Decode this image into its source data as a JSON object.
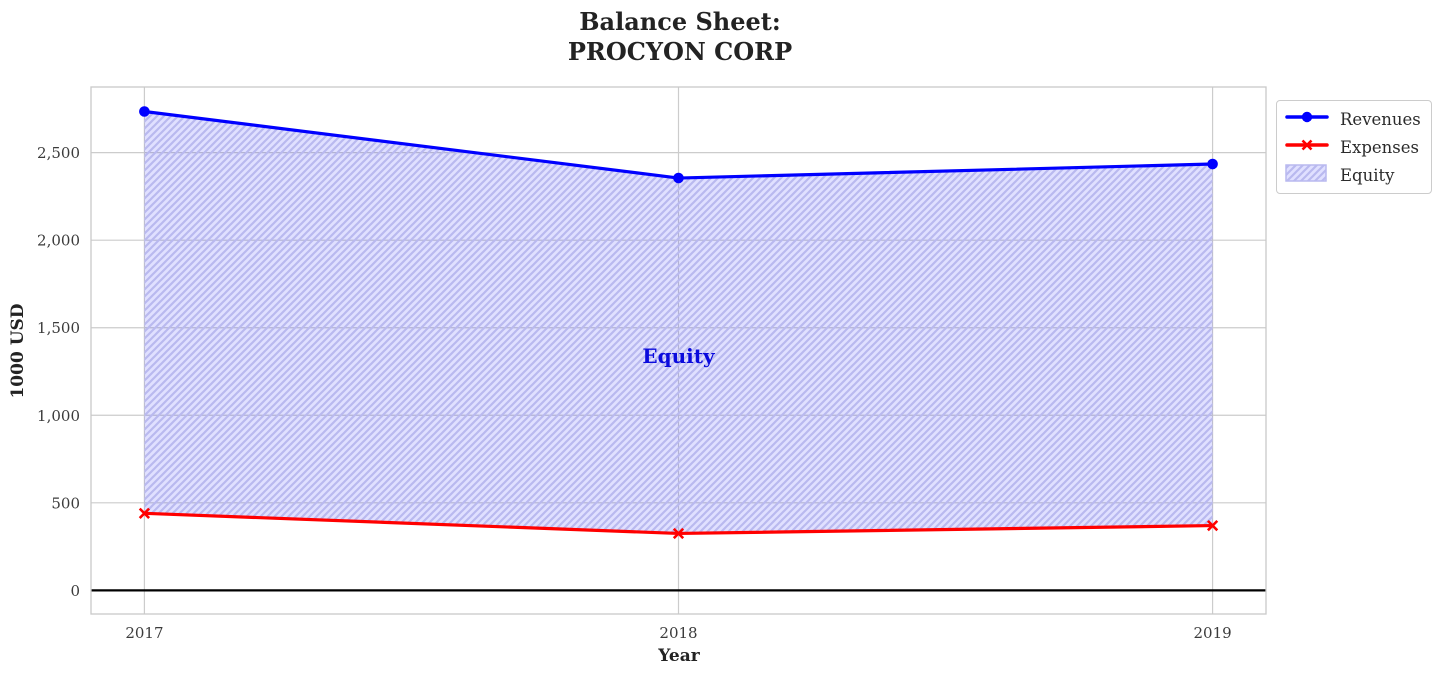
{
  "chart_data": {
    "type": "line",
    "title": "Balance Sheet:\nPROCYON CORP",
    "xlabel": "Year",
    "ylabel": "1000 USD",
    "x": [
      2017,
      2018,
      2019
    ],
    "series": [
      {
        "name": "Revenues",
        "values": [
          2735,
          2355,
          2435
        ],
        "color": "#0000ff",
        "marker": "circle"
      },
      {
        "name": "Expenses",
        "values": [
          440,
          325,
          370
        ],
        "color": "#ff0000",
        "marker": "x"
      }
    ],
    "area": {
      "name": "Equity",
      "between": [
        "Expenses",
        "Revenues"
      ],
      "fill_color": "#0000ff",
      "fill_opacity": 0.12,
      "hatch": "/",
      "hatch_color": "#b9b9ef"
    },
    "annotation": {
      "text": "Equity",
      "x": 2018,
      "y": 1340,
      "color": "#0b0bdd"
    },
    "x_ticks": [
      2017,
      2018,
      2019
    ],
    "y_ticks": [
      0,
      500,
      1000,
      1500,
      2000,
      2500
    ],
    "xlim": [
      2016.9,
      2019.1
    ],
    "ylim": [
      -135,
      2875
    ],
    "zero_line_value": 0,
    "zero_line_color": "#000000",
    "grid": true,
    "grid_color": "#cccccc",
    "spine_color": "#c9c9c9",
    "tick_label_color": "#3b3b3b",
    "legend_position": "outside-top-right"
  }
}
